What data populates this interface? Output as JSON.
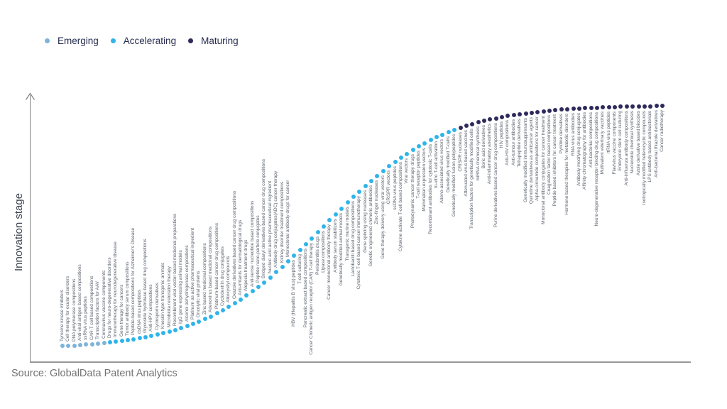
{
  "footer": {
    "source": "Source: GlobalData Patent Analytics"
  },
  "chart_data": {
    "type": "scatter",
    "title": "",
    "xlabel": "",
    "ylabel": "Innovation stage",
    "legend_position": "top-left",
    "grid": false,
    "legend": [
      "Emerging",
      "Accelerating",
      "Maturing"
    ],
    "series": [
      {
        "name": "Emerging",
        "color": "#7fb3d8",
        "labels": [
          "Tyrosine kinase inhibitors",
          "Cell therapy for ocular disorders",
          "DNA polymerase compositions",
          "Anti-viral antigen based compositions",
          "ssRNA virus peptides",
          "CAR-T cell based compositions",
          "Transcription factors for AAV",
          "Coronavirus vaccine components"
        ]
      },
      {
        "name": "Accelerating",
        "color": "#2fb4ea",
        "labels": [
          "Drugs for neuro-degenerative disorders",
          "Immunotherapy for neurodegenerative disease",
          "Gene therapy for cancers",
          "Tumor antibody serum compositions",
          "Peptide-based compositions for Alzheimer's Disease",
          "dsDNA virus peptides",
          "Glycoside hydrolase based drug compositions",
          "Anti-HPV compositions",
          "Cyclosporin derivatives",
          "Knockin type transgenic animals",
          "Microbiota restoration therapy",
          "Recombinant viral vector based medicinal preparations",
          "IgG gene expressing animal models",
          "Alcohol dehydrogenase compositions",
          "Platinum as active pharmaceutical ingredient",
          "Oncolytic viral proteins",
          "Zinc based medicinal compositions",
          "Adenovirus based medicinal compositions",
          "Platinum-based cancer drug compositions",
          "Cyclodextrin drug conjugates",
          "Alkoxysilyl compounds",
          "Oxazole derivatives based cancer drug compositions",
          "Anti-irritants for dermatological drugs",
          "Alopecia treatment drugs",
          "Anti-sense nucleotide based compositions",
          "Peptide nano-particle conjugates",
          "Bridged diaryl derivatives based cancer drug compositions",
          "Nucleic acid active pharmaceutical ingredient",
          "Antibody drug conjugates(ADC) cancer therapy",
          "Kidney disorder treatment compositions",
          "Monoclonal antibody drugs for cancer",
          "HBV (Hepatitis B Virus) peptides",
          "T-cell culturing",
          "Pancreatic extract based compositions",
          "Cancer Chimeric antigen receptor (CAR) T-cell therapy",
          "Periodontitis drugs",
          "Lipase compositions",
          "Cancer monoclonal antibody therapy",
          "Antibody serum stabilizers",
          "Genetically modified animal models",
          "Transgenic murine models",
          "Lactobacilli based drug compositions",
          "Cytotoxic T-cell based cancer immunotherapy",
          "Gene splicing using nucleases",
          "Genetic engineered chimeric antibodies",
          "Zinc-finger nucleases",
          "Gene therapy delivery using viral vectors",
          "CRISPR vectors",
          "ssDNA virus peptides",
          "Cytokine activate T-cell based compositions",
          "Viral vectors",
          "Photodynamic cancer therapy drugs",
          "T-cell receptor peptides",
          "Mammalian expression vectors",
          "Recombinant antibodies for cytotoxic T-cells",
          "In-vitro T-cell activation",
          "Adeno-associated virus vectors",
          "Genetically modified T-cells",
          "Genetically modified fusion polypeptides"
        ]
      },
      {
        "name": "Maturing",
        "color": "#2e2a5b",
        "labels": [
          "CRISPR nucleases",
          "Attenuated virus based vaccines",
          "Transcription factors for genetically modified cells",
          "miRNA chemical synthesis",
          "Boric acid derivatives",
          "Anti-inflammatory anesthetics",
          "Purine derivatives based cancer drug compositions",
          "HIV peptides",
          "Anti-HIV compositions",
          "Anti-tumour antibodies",
          "Tetrapeptide derivatives",
          "Genetically modified immunosuppresants",
          "Quinoline derivatives as anticancer agents",
          "Alpha-cinnamide compositions for cancer",
          "Monoclonal antibody conjugates for cancer treatment",
          "Coagulation factor based compositions",
          "Peptide based inhibitors for cancer treatment",
          "Pyridine derivatives",
          "Hormone based therapies for metabolic disorders",
          "RNA virus antibodies",
          "Antibody modifying drug conjugates",
          "Affinity chromatography for antibodies",
          "Anti-bacterial compositions",
          "Neuro-degenerative receptor binding drug compositions",
          "Multivalent veterinary vaccines",
          "rtRNA virus peptides",
          "Flavivirus vaccine components",
          "Embryonic stem cell culturing",
          "Anti-influenza antibody compositions",
          "Nucleoside chemical synthesis",
          "Azole derivative based biocides",
          "Isotropically modified heterocyclic compounds",
          "LPS antibody based anti-bacterials",
          "Anti-bacterial thiazole derivatives",
          "Cancer radiotherapy"
        ]
      }
    ]
  }
}
